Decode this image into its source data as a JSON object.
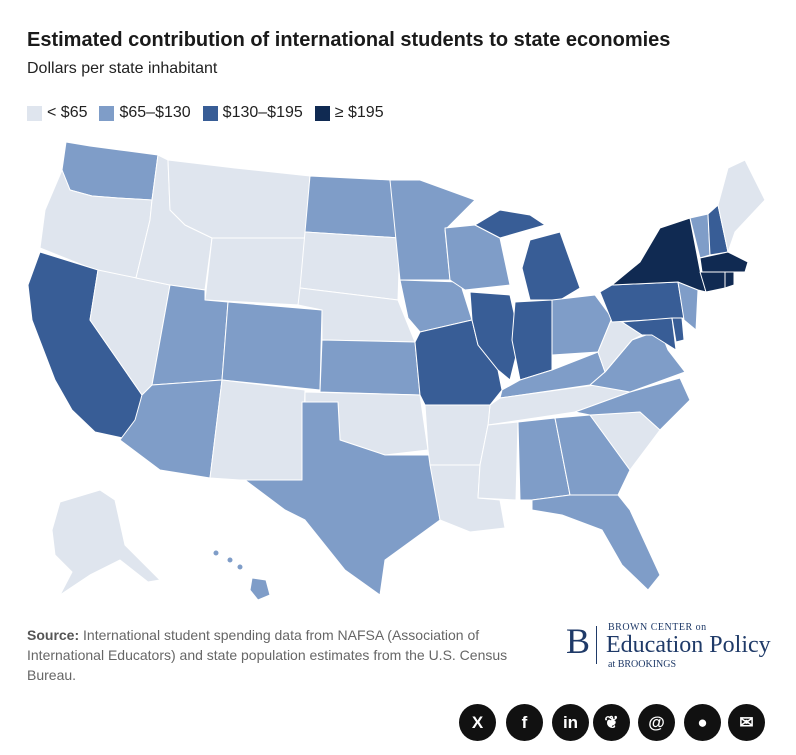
{
  "title": "Estimated contribution of international students to state economies",
  "subtitle": "Dollars per state inhabitant",
  "legend": [
    {
      "label": "< $65",
      "color": "#dfe5ee"
    },
    {
      "label": "$65–$130",
      "color": "#7f9dc8"
    },
    {
      "label": "$130–$195",
      "color": "#385d96"
    },
    {
      "label": "≥ $195",
      "color": "#102a52"
    }
  ],
  "source": {
    "label": "Source:",
    "text": "International student spending data from NAFSA (Association of International Educators) and state population estimates from the U.S. Census Bureau."
  },
  "brand": {
    "letter": "B",
    "line1": "BROWN CENTER on",
    "line2": "Education Policy",
    "line3": "at BROOKINGS"
  },
  "share": [
    {
      "icon": "x-icon",
      "glyph": "X"
    },
    {
      "icon": "facebook-icon",
      "glyph": "f"
    },
    {
      "icon": "linkedin-icon",
      "glyph": "in"
    },
    {
      "icon": "bluesky-icon",
      "glyph": "❦"
    },
    {
      "icon": "threads-icon",
      "glyph": "@"
    },
    {
      "icon": "reddit-icon",
      "glyph": "●"
    },
    {
      "icon": "email-icon",
      "glyph": "✉"
    }
  ]
}
